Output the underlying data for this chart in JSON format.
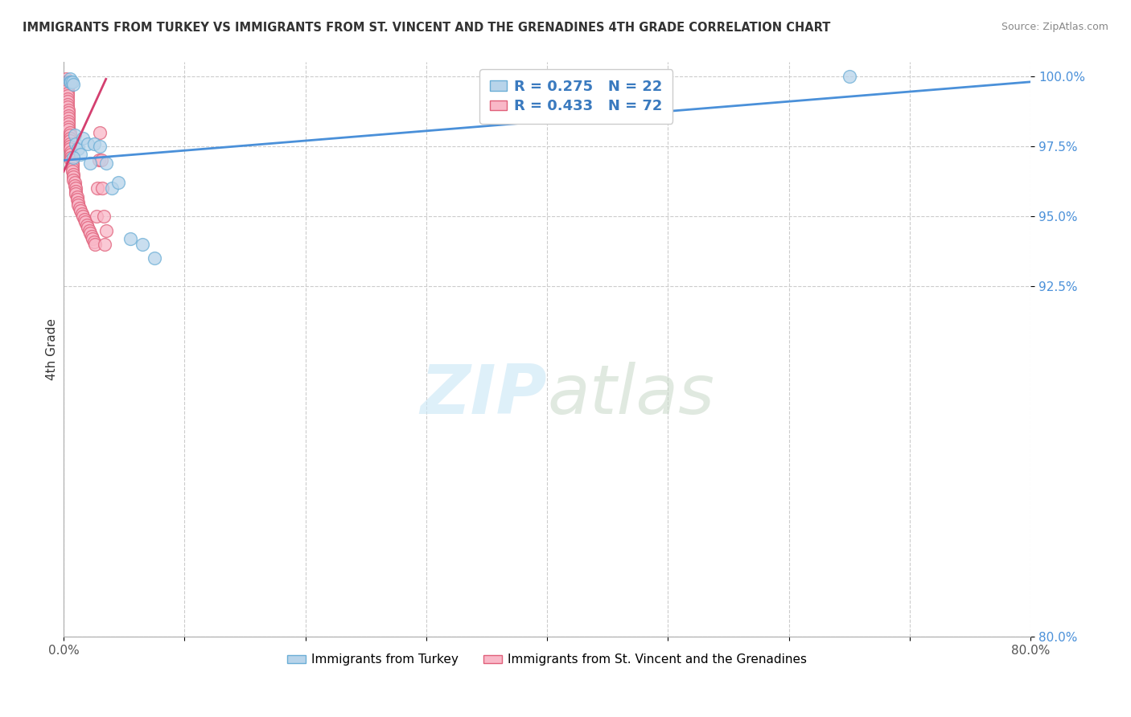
{
  "title": "IMMIGRANTS FROM TURKEY VS IMMIGRANTS FROM ST. VINCENT AND THE GRENADINES 4TH GRADE CORRELATION CHART",
  "source": "Source: ZipAtlas.com",
  "ylabel": "4th Grade",
  "watermark": "ZIPatlas",
  "legend_1_label": "Immigrants from Turkey",
  "legend_2_label": "Immigrants from St. Vincent and the Grenadines",
  "R1": 0.275,
  "N1": 22,
  "R2": 0.433,
  "N2": 72,
  "color_turkey": "#b8d4ea",
  "color_svg": "#f9b8c8",
  "color_turkey_edge": "#6baed6",
  "color_svg_edge": "#e0607a",
  "line_color_turkey": "#4a90d9",
  "line_color_svg": "#d44070",
  "xmin": 0.0,
  "xmax": 0.8,
  "ymin": 0.8,
  "ymax": 1.005,
  "turkey_x": [
    0.005,
    0.005,
    0.006,
    0.007,
    0.008,
    0.009,
    0.01,
    0.012,
    0.014,
    0.016,
    0.02,
    0.022,
    0.025,
    0.03,
    0.035,
    0.04,
    0.045,
    0.055,
    0.065,
    0.075,
    0.65,
    0.008
  ],
  "turkey_y": [
    0.999,
    0.998,
    0.998,
    0.998,
    0.997,
    0.979,
    0.976,
    0.974,
    0.972,
    0.978,
    0.976,
    0.969,
    0.976,
    0.975,
    0.969,
    0.96,
    0.962,
    0.942,
    0.94,
    0.935,
    1.0,
    0.971
  ],
  "svgc_x": [
    0.002,
    0.002,
    0.002,
    0.002,
    0.003,
    0.003,
    0.003,
    0.003,
    0.003,
    0.003,
    0.003,
    0.003,
    0.003,
    0.003,
    0.004,
    0.004,
    0.004,
    0.004,
    0.004,
    0.004,
    0.004,
    0.004,
    0.005,
    0.005,
    0.005,
    0.005,
    0.005,
    0.005,
    0.005,
    0.006,
    0.006,
    0.006,
    0.006,
    0.007,
    0.007,
    0.007,
    0.007,
    0.008,
    0.008,
    0.008,
    0.009,
    0.009,
    0.01,
    0.01,
    0.01,
    0.011,
    0.011,
    0.012,
    0.012,
    0.013,
    0.014,
    0.015,
    0.016,
    0.017,
    0.018,
    0.019,
    0.02,
    0.021,
    0.022,
    0.023,
    0.024,
    0.025,
    0.026,
    0.027,
    0.028,
    0.029,
    0.03,
    0.031,
    0.032,
    0.033,
    0.034,
    0.035
  ],
  "svgc_y": [
    0.999,
    0.998,
    0.997,
    0.996,
    0.998,
    0.997,
    0.996,
    0.995,
    0.994,
    0.993,
    0.992,
    0.991,
    0.99,
    0.989,
    0.988,
    0.987,
    0.986,
    0.985,
    0.984,
    0.983,
    0.982,
    0.981,
    0.98,
    0.979,
    0.978,
    0.977,
    0.976,
    0.975,
    0.974,
    0.973,
    0.972,
    0.971,
    0.97,
    0.969,
    0.968,
    0.967,
    0.966,
    0.965,
    0.964,
    0.963,
    0.962,
    0.961,
    0.96,
    0.959,
    0.958,
    0.957,
    0.956,
    0.955,
    0.954,
    0.953,
    0.952,
    0.951,
    0.95,
    0.949,
    0.948,
    0.947,
    0.946,
    0.945,
    0.944,
    0.943,
    0.942,
    0.941,
    0.94,
    0.95,
    0.96,
    0.97,
    0.98,
    0.97,
    0.96,
    0.95,
    0.94,
    0.945
  ],
  "turkey_line_x": [
    0.0,
    0.8
  ],
  "turkey_line_y": [
    0.97,
    0.998
  ],
  "svg_line_x": [
    0.0,
    0.035
  ],
  "svg_line_y": [
    0.966,
    0.999
  ],
  "ytick_vals": [
    0.8,
    0.925,
    0.95,
    0.975,
    1.0
  ],
  "ytick_labels": [
    "80.0%",
    "92.5%",
    "95.0%",
    "97.5%",
    "100.0%"
  ],
  "xtick_vals": [
    0.0,
    0.1,
    0.2,
    0.3,
    0.4,
    0.5,
    0.6,
    0.7,
    0.8
  ],
  "xtick_labels": [
    "0.0%",
    "",
    "",
    "",
    "",
    "",
    "",
    "",
    "80.0%"
  ]
}
